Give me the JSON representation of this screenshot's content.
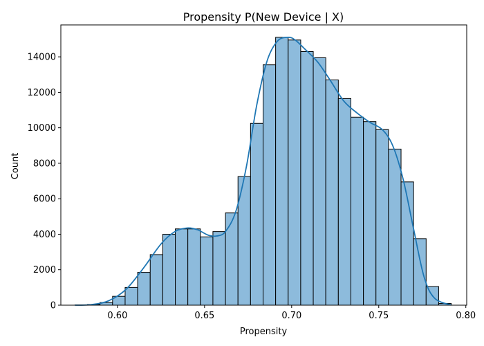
{
  "chart_data": {
    "type": "bar",
    "subtype": "histogram_with_kde",
    "title": "Propensity P(New Device | X)",
    "xlabel": "Propensity",
    "ylabel": "Count",
    "xlim": [
      0.5675,
      0.8005
    ],
    "ylim": [
      0,
      15800
    ],
    "xticks": [
      0.6,
      0.65,
      0.7,
      0.75,
      0.8
    ],
    "xtick_labels": [
      "0.60",
      "0.65",
      "0.70",
      "0.75",
      "0.80"
    ],
    "yticks": [
      0,
      2000,
      4000,
      6000,
      8000,
      10000,
      12000,
      14000
    ],
    "ytick_labels": [
      "0",
      "2000",
      "4000",
      "6000",
      "8000",
      "10000",
      "12000",
      "14000"
    ],
    "grid": false,
    "bar_fill": "#8dbbdc",
    "bar_edge": "#000000",
    "kde_color": "#1f77b4",
    "bins": [
      {
        "x0": 0.5756,
        "x1": 0.5828,
        "count": 10
      },
      {
        "x0": 0.5828,
        "x1": 0.59,
        "count": 40
      },
      {
        "x0": 0.59,
        "x1": 0.5972,
        "count": 150
      },
      {
        "x0": 0.5972,
        "x1": 0.6044,
        "count": 500
      },
      {
        "x0": 0.6044,
        "x1": 0.6116,
        "count": 1000
      },
      {
        "x0": 0.6116,
        "x1": 0.6188,
        "count": 1850
      },
      {
        "x0": 0.6188,
        "x1": 0.626,
        "count": 2850
      },
      {
        "x0": 0.626,
        "x1": 0.6332,
        "count": 4000
      },
      {
        "x0": 0.6332,
        "x1": 0.6404,
        "count": 4300
      },
      {
        "x0": 0.6404,
        "x1": 0.6476,
        "count": 4300
      },
      {
        "x0": 0.6476,
        "x1": 0.6548,
        "count": 3850
      },
      {
        "x0": 0.6548,
        "x1": 0.662,
        "count": 4150
      },
      {
        "x0": 0.662,
        "x1": 0.6692,
        "count": 5200
      },
      {
        "x0": 0.6692,
        "x1": 0.6764,
        "count": 7250
      },
      {
        "x0": 0.6764,
        "x1": 0.6836,
        "count": 10250
      },
      {
        "x0": 0.6836,
        "x1": 0.6908,
        "count": 13550
      },
      {
        "x0": 0.6908,
        "x1": 0.698,
        "count": 15100
      },
      {
        "x0": 0.698,
        "x1": 0.7052,
        "count": 14950
      },
      {
        "x0": 0.7052,
        "x1": 0.7124,
        "count": 14300
      },
      {
        "x0": 0.7124,
        "x1": 0.7196,
        "count": 13950
      },
      {
        "x0": 0.7196,
        "x1": 0.7268,
        "count": 12700
      },
      {
        "x0": 0.7268,
        "x1": 0.734,
        "count": 11650
      },
      {
        "x0": 0.734,
        "x1": 0.7412,
        "count": 10600
      },
      {
        "x0": 0.7412,
        "x1": 0.7484,
        "count": 10350
      },
      {
        "x0": 0.7484,
        "x1": 0.7556,
        "count": 9900
      },
      {
        "x0": 0.7556,
        "x1": 0.7628,
        "count": 8800
      },
      {
        "x0": 0.7628,
        "x1": 0.77,
        "count": 6950
      },
      {
        "x0": 0.77,
        "x1": 0.7772,
        "count": 3750
      },
      {
        "x0": 0.7772,
        "x1": 0.7844,
        "count": 1050
      },
      {
        "x0": 0.7844,
        "x1": 0.7916,
        "count": 100
      }
    ],
    "kde": {
      "x": [
        0.5756,
        0.585,
        0.595,
        0.605,
        0.615,
        0.625,
        0.633,
        0.64,
        0.646,
        0.652,
        0.657,
        0.662,
        0.668,
        0.674,
        0.68,
        0.686,
        0.692,
        0.698,
        0.702,
        0.708,
        0.715,
        0.722,
        0.73,
        0.738,
        0.745,
        0.752,
        0.758,
        0.764,
        0.77,
        0.776,
        0.782,
        0.7916
      ],
      "y": [
        0,
        30,
        250,
        900,
        2100,
        3450,
        4150,
        4350,
        4250,
        3950,
        3900,
        4150,
        5300,
        7800,
        11300,
        13800,
        14900,
        15100,
        14950,
        14400,
        13700,
        12700,
        11500,
        10800,
        10300,
        9900,
        9000,
        7100,
        4300,
        1600,
        400,
        0
      ]
    }
  }
}
